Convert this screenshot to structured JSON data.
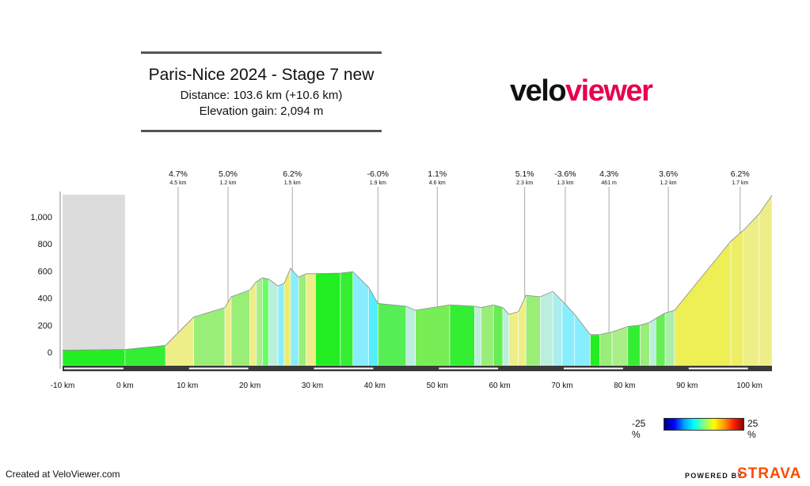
{
  "header": {
    "title": "Paris-Nice 2024 - Stage 7 new",
    "distance": "Distance: 103.6 km (+10.6 km)",
    "elevation": "Elevation gain: 2,094 m"
  },
  "logo": {
    "part1": "velo",
    "part2": "viewer",
    "color1": "#111111",
    "color2": "#e8004d"
  },
  "legend": {
    "min_label": "-25 %",
    "max_label": "25 %"
  },
  "footer": {
    "created": "Created at VeloViewer.com",
    "powered": "POWERED BY",
    "strava": "STRAVA",
    "strava_color": "#fc4c02"
  },
  "chart_data": {
    "type": "area",
    "xlabel": "",
    "ylabel": "",
    "x_ticks": [
      -10,
      0,
      10,
      20,
      30,
      40,
      50,
      60,
      70,
      80,
      90,
      100
    ],
    "x_tick_labels": [
      "-10 km",
      "0 km",
      "10 km",
      "20 km",
      "30 km",
      "40 km",
      "50 km",
      "60 km",
      "70 km",
      "80 km",
      "90 km",
      "100 km"
    ],
    "y_ticks": [
      0,
      200,
      400,
      600,
      800,
      1000
    ],
    "y_tick_labels": [
      "0",
      "200",
      "400",
      "600",
      "800",
      "1,000"
    ],
    "xlim": [
      -10,
      103.6
    ],
    "ylim": [
      -100,
      1180
    ],
    "neutral_zone": [
      -10,
      0
    ],
    "profile": [
      {
        "x": -10,
        "y": 15,
        "color": "#22ee22"
      },
      {
        "x": 0,
        "y": 20,
        "color": "#33ee33"
      },
      {
        "x": 6.5,
        "y": 50,
        "color": "#eeee88"
      },
      {
        "x": 11,
        "y": 260,
        "color": "#99ee77"
      },
      {
        "x": 16,
        "y": 330,
        "color": "#eeee88"
      },
      {
        "x": 17,
        "y": 410,
        "color": "#99ee77"
      },
      {
        "x": 20,
        "y": 460,
        "color": "#eeee88"
      },
      {
        "x": 21,
        "y": 520,
        "color": "#aaee88"
      },
      {
        "x": 22,
        "y": 550,
        "color": "#66ff66"
      },
      {
        "x": 23,
        "y": 540,
        "color": "#bbeedd"
      },
      {
        "x": 24.5,
        "y": 490,
        "color": "#88eeff"
      },
      {
        "x": 25.5,
        "y": 510,
        "color": "#eeee66"
      },
      {
        "x": 26.5,
        "y": 620,
        "color": "#88eeff"
      },
      {
        "x": 27.8,
        "y": 555,
        "color": "#99ee77"
      },
      {
        "x": 29,
        "y": 580,
        "color": "#eeee88"
      },
      {
        "x": 30.5,
        "y": 580,
        "color": "#22ee22"
      },
      {
        "x": 34.5,
        "y": 585,
        "color": "#33ee33"
      },
      {
        "x": 36.5,
        "y": 595,
        "color": "#88eeff"
      },
      {
        "x": 39,
        "y": 480,
        "color": "#55eeff"
      },
      {
        "x": 40.5,
        "y": 360,
        "color": "#55ee55"
      },
      {
        "x": 45,
        "y": 340,
        "color": "#bbeedd"
      },
      {
        "x": 46.5,
        "y": 310,
        "color": "#77ee55"
      },
      {
        "x": 52,
        "y": 350,
        "color": "#33ee33"
      },
      {
        "x": 56,
        "y": 340,
        "color": "#bbeedd"
      },
      {
        "x": 57,
        "y": 330,
        "color": "#99ee77"
      },
      {
        "x": 59,
        "y": 350,
        "color": "#66ee55"
      },
      {
        "x": 60.5,
        "y": 330,
        "color": "#bbeedd"
      },
      {
        "x": 61.5,
        "y": 280,
        "color": "#eeee88"
      },
      {
        "x": 63,
        "y": 300,
        "color": "#eeee88"
      },
      {
        "x": 64.2,
        "y": 420,
        "color": "#99ee77"
      },
      {
        "x": 66.5,
        "y": 410,
        "color": "#bbeedd"
      },
      {
        "x": 68.5,
        "y": 450,
        "color": "#aaeeee"
      },
      {
        "x": 70,
        "y": 380,
        "color": "#88eeff"
      },
      {
        "x": 72,
        "y": 280,
        "color": "#88eeff"
      },
      {
        "x": 74.5,
        "y": 130,
        "color": "#22ee22"
      },
      {
        "x": 76,
        "y": 130,
        "color": "#99ee77"
      },
      {
        "x": 78,
        "y": 150,
        "color": "#aaee88"
      },
      {
        "x": 80.5,
        "y": 190,
        "color": "#33ee33"
      },
      {
        "x": 82.5,
        "y": 200,
        "color": "#99ee77"
      },
      {
        "x": 84,
        "y": 220,
        "color": "#bbeedd"
      },
      {
        "x": 85,
        "y": 250,
        "color": "#66ee55"
      },
      {
        "x": 86.5,
        "y": 290,
        "color": "#aaeeaa"
      },
      {
        "x": 88,
        "y": 310,
        "color": "#eeee55"
      },
      {
        "x": 97,
        "y": 820,
        "color": "#eeee66"
      },
      {
        "x": 99,
        "y": 900,
        "color": "#eeee88"
      },
      {
        "x": 101.5,
        "y": 1020,
        "color": "#eeee88"
      },
      {
        "x": 103.6,
        "y": 1160
      }
    ],
    "climbs": [
      {
        "x": 8.5,
        "grade": "4.7%",
        "length": "4.5 km"
      },
      {
        "x": 16.5,
        "grade": "5.0%",
        "length": "1.2 km"
      },
      {
        "x": 26.8,
        "grade": "6.2%",
        "length": "1.5 km"
      },
      {
        "x": 40.5,
        "grade": "-6.0%",
        "length": "1.9 km"
      },
      {
        "x": 50,
        "grade": "1.1%",
        "length": "4.6 km"
      },
      {
        "x": 64,
        "grade": "5.1%",
        "length": "2.3 km"
      },
      {
        "x": 70.5,
        "grade": "-3.6%",
        "length": "1.3 km"
      },
      {
        "x": 77.5,
        "grade": "4.3%",
        "length": "461 m"
      },
      {
        "x": 87,
        "grade": "3.6%",
        "length": "1.2 km"
      },
      {
        "x": 98.5,
        "grade": "6.2%",
        "length": "1.7 km"
      }
    ]
  }
}
